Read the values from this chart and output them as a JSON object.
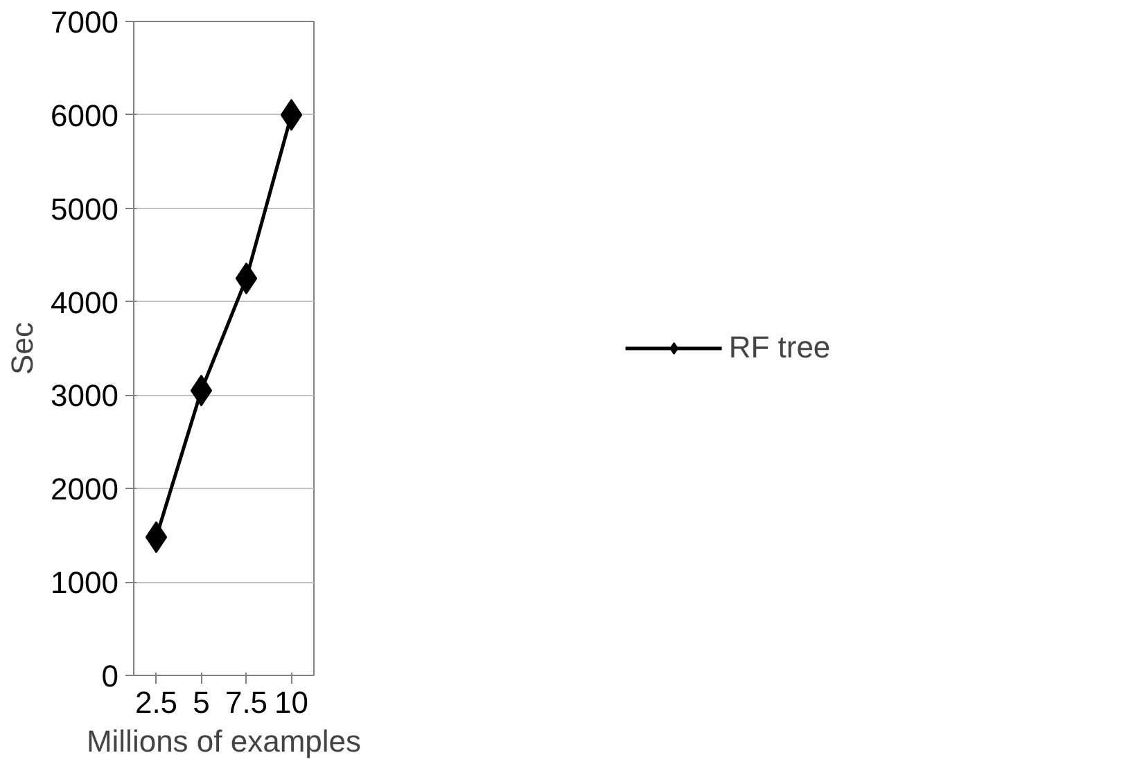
{
  "chart_data": {
    "type": "line",
    "xlabel": "Millions of examples",
    "ylabel": "Sec",
    "categories": [
      "2.5",
      "5",
      "7.5",
      "10"
    ],
    "series": [
      {
        "name": "RF tree",
        "color": "#000000",
        "values": [
          1480,
          3050,
          4250,
          6000
        ]
      }
    ],
    "ylim": [
      0,
      7000
    ],
    "yticks": [
      0,
      1000,
      2000,
      3000,
      4000,
      5000,
      6000,
      7000
    ],
    "grid": "y",
    "legend": "right",
    "marker": "diamond",
    "line_style": "solid"
  }
}
